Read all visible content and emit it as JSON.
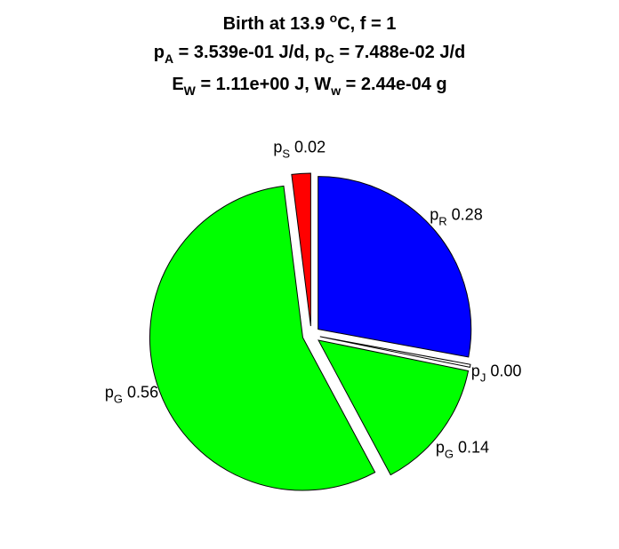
{
  "chart_data": {
    "type": "pie",
    "title": {
      "line1": {
        "a": "Birth at 13.9 ",
        "sup": "o",
        "b": "C, f = 1"
      },
      "line2": {
        "a": "p",
        "a_sub": "A",
        "b": " = 3.539e-01 J/d, p",
        "b_sub": "C",
        "c": " = 7.488e-02 J/d"
      },
      "line3": {
        "a": "E",
        "a_sub": "W",
        "b": " = 1.11e+00 J, W",
        "b_sub": "w",
        "c": " = 2.44e-04 g"
      }
    },
    "slices": [
      {
        "base": "p",
        "sub": "R",
        "value_text": "0.28",
        "value": 0.28,
        "color": "#0000ff"
      },
      {
        "base": "p",
        "sub": "J",
        "value_text": "0.00",
        "value": 0.003,
        "color": "#ffffff"
      },
      {
        "base": "p",
        "sub": "G",
        "value_text": "0.14",
        "value": 0.14,
        "color": "#00ff00"
      },
      {
        "base": "p",
        "sub": "G",
        "value_text": "0.56",
        "value": 0.56,
        "color": "#00ff00"
      },
      {
        "base": "p",
        "sub": "S",
        "value_text": "0.02",
        "value": 0.02,
        "color": "#ff0000"
      }
    ],
    "exploded": true,
    "start": "12 o'clock",
    "direction": "clockwise"
  }
}
